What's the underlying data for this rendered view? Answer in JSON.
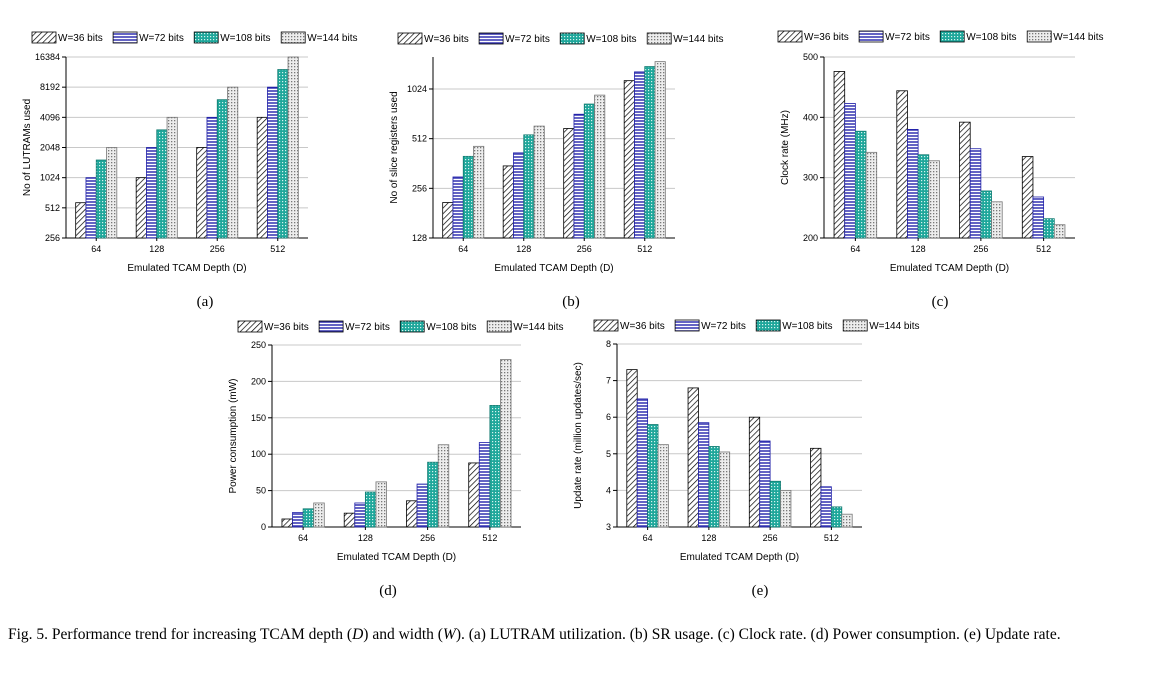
{
  "legend_labels": [
    "W=36 bits",
    "W=72 bits",
    "W=108 bits",
    "W=144 bits"
  ],
  "colors": {
    "w36": "#ffffff",
    "w72": "#2222aa",
    "w108": "#1fa79b",
    "w144": "#9a9a9a"
  },
  "caption": {
    "prefix": "Fig. 5.   Performance trend for increasing TCAM depth (",
    "d": "D",
    "mid": ") and width (",
    "w": "W",
    "suffix": "). (a) LUTRAM utilization. (b) SR usage. (c) Clock rate. (d) Power consumption. (e) Update rate."
  },
  "chart_data": [
    {
      "id": "a",
      "panel_label": "(a)",
      "type": "bar",
      "scale": "log2",
      "categories": [
        "64",
        "128",
        "256",
        "512"
      ],
      "xlabel": "Emulated TCAM Depth (D)",
      "ylabel": "No of LUTRAMs used",
      "ylim": [
        256,
        16384
      ],
      "yticks": [
        256,
        512,
        1024,
        2048,
        4096,
        8192,
        16384
      ],
      "ytick_labels": [
        "256",
        "512",
        "1024",
        "2048",
        "4096",
        "8192",
        "16384"
      ],
      "series": [
        {
          "name": "W=36 bits",
          "values": [
            576,
            1024,
            2048,
            4096
          ]
        },
        {
          "name": "W=72 bits",
          "values": [
            1024,
            2048,
            4096,
            8192
          ]
        },
        {
          "name": "W=108 bits",
          "values": [
            1536,
            3072,
            6144,
            12288
          ]
        },
        {
          "name": "W=144 bits",
          "values": [
            2048,
            4096,
            8192,
            16384
          ]
        }
      ]
    },
    {
      "id": "b",
      "panel_label": "(b)",
      "type": "bar",
      "scale": "log2",
      "categories": [
        "64",
        "128",
        "256",
        "512"
      ],
      "xlabel": "Emulated TCAM Depth (D)",
      "ylabel": "No of slice registers used",
      "ylim": [
        128,
        1600
      ],
      "yticks": [
        128,
        256,
        512,
        1024
      ],
      "ytick_labels": [
        "128",
        "256",
        "512",
        "1024"
      ],
      "series": [
        {
          "name": "W=36 bits",
          "values": [
            210,
            350,
            590,
            1150
          ]
        },
        {
          "name": "W=72 bits",
          "values": [
            300,
            420,
            720,
            1300
          ]
        },
        {
          "name": "W=108 bits",
          "values": [
            400,
            540,
            830,
            1400
          ]
        },
        {
          "name": "W=144 bits",
          "values": [
            460,
            610,
            940,
            1500
          ]
        }
      ]
    },
    {
      "id": "c",
      "panel_label": "(c)",
      "type": "bar",
      "scale": "linear",
      "categories": [
        "64",
        "128",
        "256",
        "512"
      ],
      "xlabel": "Emulated TCAM Depth (D)",
      "ylabel": "Clock rate (MHz)",
      "ylim": [
        200,
        500
      ],
      "yticks": [
        200,
        300,
        400,
        500
      ],
      "ytick_labels": [
        "200",
        "300",
        "400",
        "500"
      ],
      "series": [
        {
          "name": "W=36 bits",
          "values": [
            476,
            444,
            392,
            335
          ]
        },
        {
          "name": "W=72 bits",
          "values": [
            423,
            380,
            348,
            268
          ]
        },
        {
          "name": "W=108 bits",
          "values": [
            377,
            338,
            278,
            232
          ]
        },
        {
          "name": "W=144 bits",
          "values": [
            342,
            328,
            260,
            222
          ]
        }
      ]
    },
    {
      "id": "d",
      "panel_label": "(d)",
      "type": "bar",
      "scale": "linear",
      "categories": [
        "64",
        "128",
        "256",
        "512"
      ],
      "xlabel": "Emulated TCAM Depth (D)",
      "ylabel": "Power consumption (mW)",
      "ylim": [
        0,
        250
      ],
      "yticks": [
        0,
        50,
        100,
        150,
        200,
        250
      ],
      "ytick_labels": [
        "0",
        "50",
        "100",
        "150",
        "200",
        "250"
      ],
      "series": [
        {
          "name": "W=36 bits",
          "values": [
            11,
            19,
            36,
            88
          ]
        },
        {
          "name": "W=72 bits",
          "values": [
            20,
            33,
            59,
            116
          ]
        },
        {
          "name": "W=108 bits",
          "values": [
            25,
            48,
            89,
            167
          ]
        },
        {
          "name": "W=144 bits",
          "values": [
            33,
            62,
            113,
            230
          ]
        }
      ]
    },
    {
      "id": "e",
      "panel_label": "(e)",
      "type": "bar",
      "scale": "linear",
      "categories": [
        "64",
        "128",
        "256",
        "512"
      ],
      "xlabel": "Emulated TCAM Depth (D)",
      "ylabel": "Update rate (million updates/sec)",
      "ylim": [
        3,
        8
      ],
      "yticks": [
        3,
        4,
        5,
        6,
        7,
        8
      ],
      "ytick_labels": [
        "3",
        "4",
        "5",
        "6",
        "7",
        "8"
      ],
      "series": [
        {
          "name": "W=36 bits",
          "values": [
            7.3,
            6.8,
            6.0,
            5.15
          ]
        },
        {
          "name": "W=72 bits",
          "values": [
            6.5,
            5.85,
            5.35,
            4.1
          ]
        },
        {
          "name": "W=108 bits",
          "values": [
            5.8,
            5.2,
            4.25,
            3.55
          ]
        },
        {
          "name": "W=144 bits",
          "values": [
            5.25,
            5.05,
            4.0,
            3.35
          ]
        }
      ]
    }
  ]
}
